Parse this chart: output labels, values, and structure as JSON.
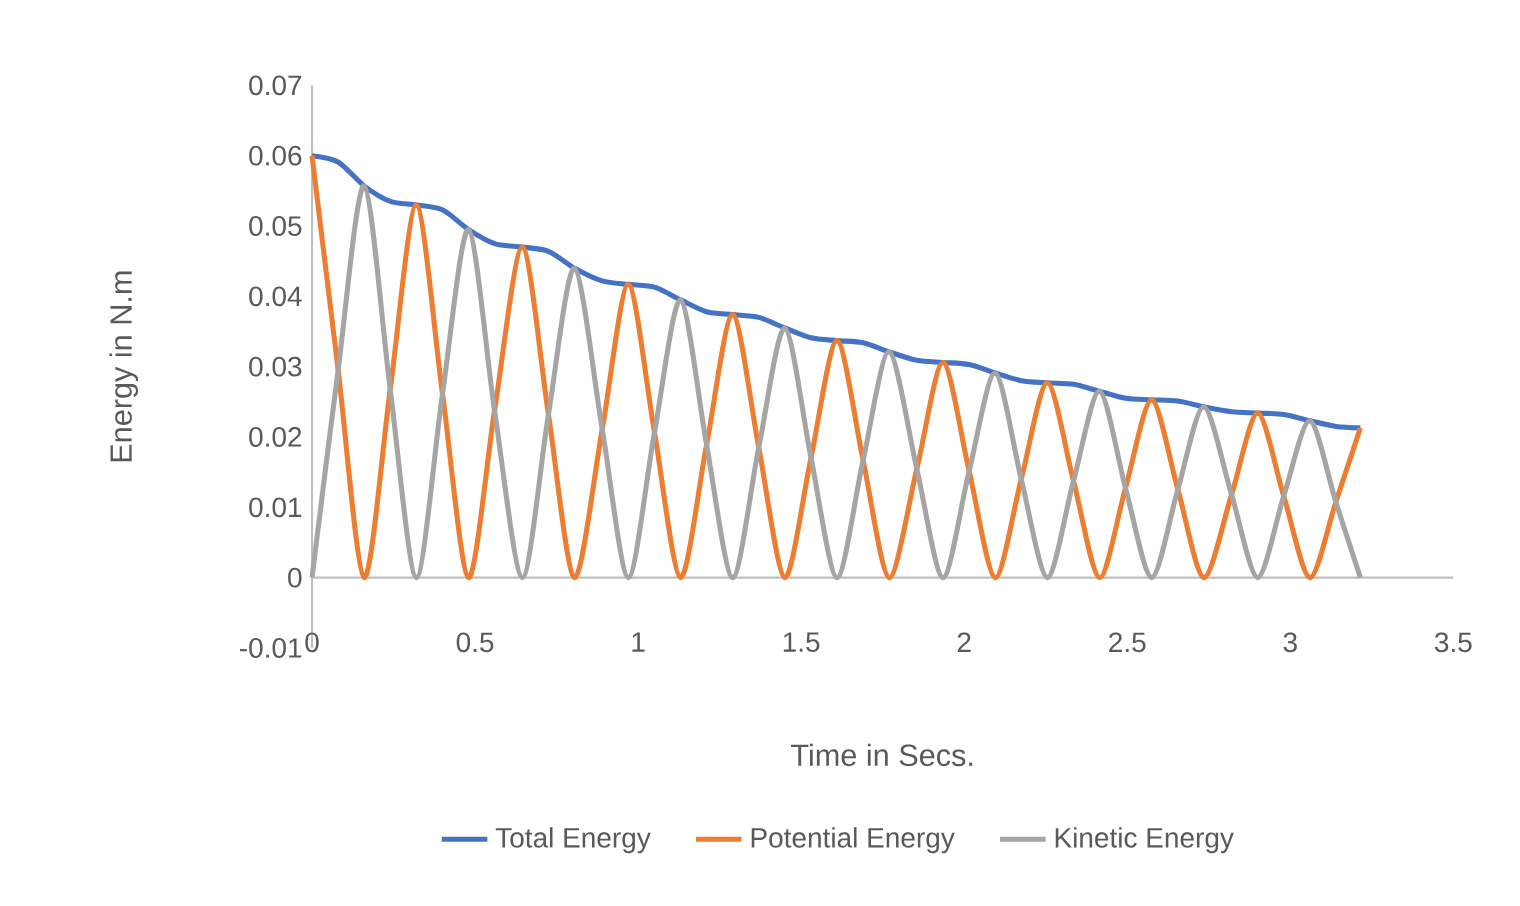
{
  "chart_data": {
    "type": "line",
    "xlabel": "Time in Secs.",
    "ylabel": "Energy in N.m",
    "xlim": [
      0,
      3.5
    ],
    "xticks": [
      0,
      0.5,
      1,
      1.5,
      2,
      2.5,
      3,
      3.5
    ],
    "ylim": [
      -0.01,
      0.07
    ],
    "yticks": [
      -0.01,
      0,
      0.01,
      0.02,
      0.03,
      0.04,
      0.05,
      0.06,
      0.07
    ],
    "legend": "bottom",
    "marker": "none",
    "line_style": "solid",
    "x": [
      0,
      0.08,
      0.16,
      0.24,
      0.32,
      0.4,
      0.48,
      0.56,
      0.645,
      0.725,
      0.805,
      0.89,
      0.97,
      1.05,
      1.13,
      1.21,
      1.29,
      1.37,
      1.45,
      1.53,
      1.61,
      1.69,
      1.77,
      1.855,
      1.935,
      2.015,
      2.095,
      2.175,
      2.255,
      2.335,
      2.415,
      2.495,
      2.575,
      2.655,
      2.735,
      2.82,
      2.9,
      2.98,
      3.06,
      3.14,
      3.215
    ],
    "series": [
      {
        "name": "Total Energy",
        "color": "#4472c4",
        "values": [
          0.06,
          0.0591,
          0.0557,
          0.0535,
          0.053,
          0.0523,
          0.0495,
          0.0475,
          0.047,
          0.0464,
          0.044,
          0.0422,
          0.0417,
          0.0413,
          0.0395,
          0.0378,
          0.0374,
          0.037,
          0.0355,
          0.0341,
          0.0337,
          0.0334,
          0.0321,
          0.0309,
          0.0306,
          0.0303,
          0.0291,
          0.028,
          0.0277,
          0.0275,
          0.0265,
          0.0255,
          0.0253,
          0.0251,
          0.0243,
          0.0236,
          0.0234,
          0.0232,
          0.0223,
          0.0215,
          0.0213
        ]
      },
      {
        "name": "Potential Energy",
        "color": "#ed7d31",
        "values": [
          0.06,
          0.0296,
          0,
          0.0268,
          0.053,
          0.0262,
          0,
          0.0238,
          0.047,
          0.0232,
          0,
          0.0211,
          0.0417,
          0.0207,
          0,
          0.0189,
          0.0374,
          0.0185,
          0,
          0.017,
          0.0337,
          0.0167,
          0,
          0.0155,
          0.0306,
          0.0152,
          0,
          0.014,
          0.0277,
          0.0138,
          0,
          0.0128,
          0.0253,
          0.0126,
          0,
          0.0118,
          0.0234,
          0.0116,
          0,
          0.0108,
          0.0213
        ]
      },
      {
        "name": "Kinetic Energy",
        "color": "#a5a5a5",
        "values": [
          0,
          0.0295,
          0.0557,
          0.0267,
          0,
          0.0261,
          0.0495,
          0.0237,
          0,
          0.0232,
          0.044,
          0.0211,
          0,
          0.0206,
          0.0395,
          0.0189,
          0,
          0.0185,
          0.0355,
          0.0171,
          0,
          0.0167,
          0.0321,
          0.0154,
          0,
          0.0151,
          0.0291,
          0.014,
          0,
          0.0137,
          0.0265,
          0.0127,
          0,
          0.0125,
          0.0243,
          0.0118,
          0,
          0.0116,
          0.0223,
          0.0107,
          0
        ]
      }
    ]
  }
}
